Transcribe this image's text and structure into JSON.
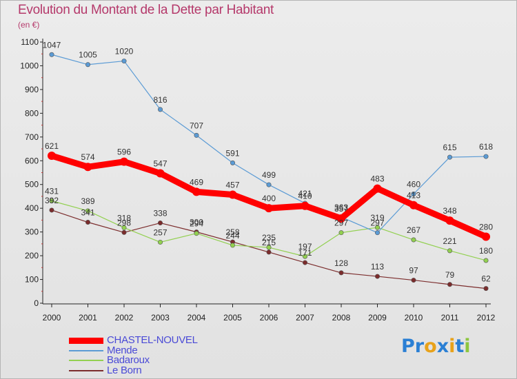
{
  "title": "Evolution du Montant de la Dette par Habitant",
  "subtitle": "(en €)",
  "logo": {
    "text": "Proxiti",
    "colors": [
      "#2a7fd4",
      "#2a7fd4",
      "#e8a21a",
      "#2a7fd4",
      "#e8a21a",
      "#2a7fd4",
      "#8dc63f"
    ]
  },
  "chart_data": {
    "type": "line",
    "x": [
      "2000",
      "2001",
      "2002",
      "2003",
      "2004",
      "2005",
      "2006",
      "2007",
      "2008",
      "2009",
      "2010",
      "2011",
      "2012"
    ],
    "ylim": [
      0,
      1100
    ],
    "yticks": [
      0,
      100,
      200,
      300,
      400,
      500,
      600,
      700,
      800,
      900,
      1000,
      1100
    ],
    "grid": false,
    "legend_position": "bottom-left",
    "series": [
      {
        "name": "CHASTEL-NOUVEL",
        "color": "#ff0000",
        "values": [
          621,
          574,
          596,
          547,
          469,
          457,
          400,
          410,
          357,
          483,
          413,
          348,
          280
        ]
      },
      {
        "name": "Mende",
        "color": "#5b9bd5",
        "values": [
          1047,
          1005,
          1020,
          816,
          707,
          591,
          499,
          421,
          363,
          297,
          460,
          615,
          618
        ]
      },
      {
        "name": "Badaroux",
        "color": "#92d050",
        "values": [
          431,
          389,
          318,
          257,
          294,
          244,
          235,
          197,
          297,
          319,
          267,
          221,
          180
        ]
      },
      {
        "name": "Le Born",
        "color": "#7b2c2c",
        "values": [
          392,
          341,
          298,
          338,
          300,
          258,
          215,
          171,
          128,
          113,
          97,
          79,
          62
        ]
      }
    ]
  }
}
